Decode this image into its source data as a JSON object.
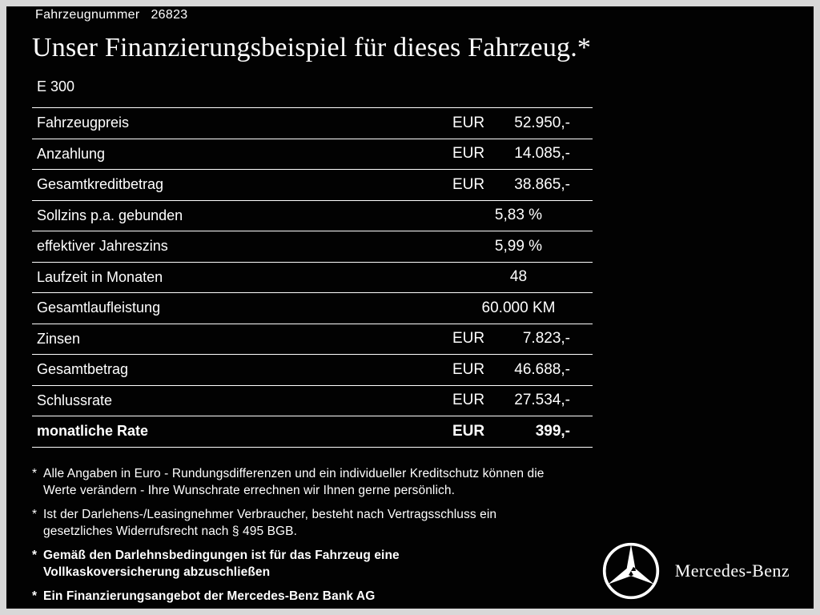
{
  "header": {
    "vehicle_number_label": "Fahrzeugnummer",
    "vehicle_number": "26823",
    "title": "Unser Finanzierungsbeispiel für dieses Fahrzeug.*",
    "model": "E 300"
  },
  "table": {
    "rows": [
      {
        "label": "Fahrzeugpreis",
        "currency": "EUR",
        "value": "52.950,-",
        "bold": false
      },
      {
        "label": "Anzahlung",
        "currency": "EUR",
        "value": "14.085,-",
        "bold": false
      },
      {
        "label": "Gesamtkreditbetrag",
        "currency": "EUR",
        "value": "38.865,-",
        "bold": false
      },
      {
        "label": "Sollzins p.a. gebunden",
        "currency": "",
        "value": "5,83 %",
        "bold": false
      },
      {
        "label": "effektiver Jahreszins",
        "currency": "",
        "value": "5,99 %",
        "bold": false
      },
      {
        "label": "Laufzeit in Monaten",
        "currency": "",
        "value": "48",
        "bold": false
      },
      {
        "label": "Gesamtlaufleistung",
        "currency": "",
        "value": "60.000 KM",
        "bold": false
      },
      {
        "label": "Zinsen",
        "currency": "EUR",
        "value": "7.823,-",
        "bold": false
      },
      {
        "label": "Gesamtbetrag",
        "currency": "EUR",
        "value": "46.688,-",
        "bold": false
      },
      {
        "label": "Schlussrate",
        "currency": "EUR",
        "value": "27.534,-",
        "bold": false
      },
      {
        "label": "monatliche Rate",
        "currency": "EUR",
        "value": "399,-",
        "bold": true
      }
    ]
  },
  "footnotes": [
    {
      "marker": "*",
      "bold": false,
      "text": "Alle Angaben in Euro - Rundungsdifferenzen und ein individueller Kreditschutz können die\nWerte verändern - Ihre Wunschrate errechnen wir Ihnen gerne persönlich."
    },
    {
      "marker": "*",
      "bold": false,
      "text": "Ist der Darlehens-/Leasingnehmer Verbraucher, besteht nach Vertragsschluss ein\ngesetzliches Widerrufsrecht nach § 495 BGB."
    },
    {
      "marker": "*",
      "bold": true,
      "text": "Gemäß den Darlehnsbedingungen ist für das Fahrzeug eine\nVollkaskoversicherung abzuschließen"
    },
    {
      "marker": "*",
      "bold": true,
      "text": "Ein Finanzierungsangebot der Mercedes-Benz Bank AG"
    }
  ],
  "brand": {
    "logo_icon": "mercedes-star-icon",
    "name": "Mercedes-Benz"
  },
  "colors": {
    "background": "#020202",
    "frame": "#d8d8d8",
    "text": "#ffffff",
    "rule": "#ffffff"
  }
}
